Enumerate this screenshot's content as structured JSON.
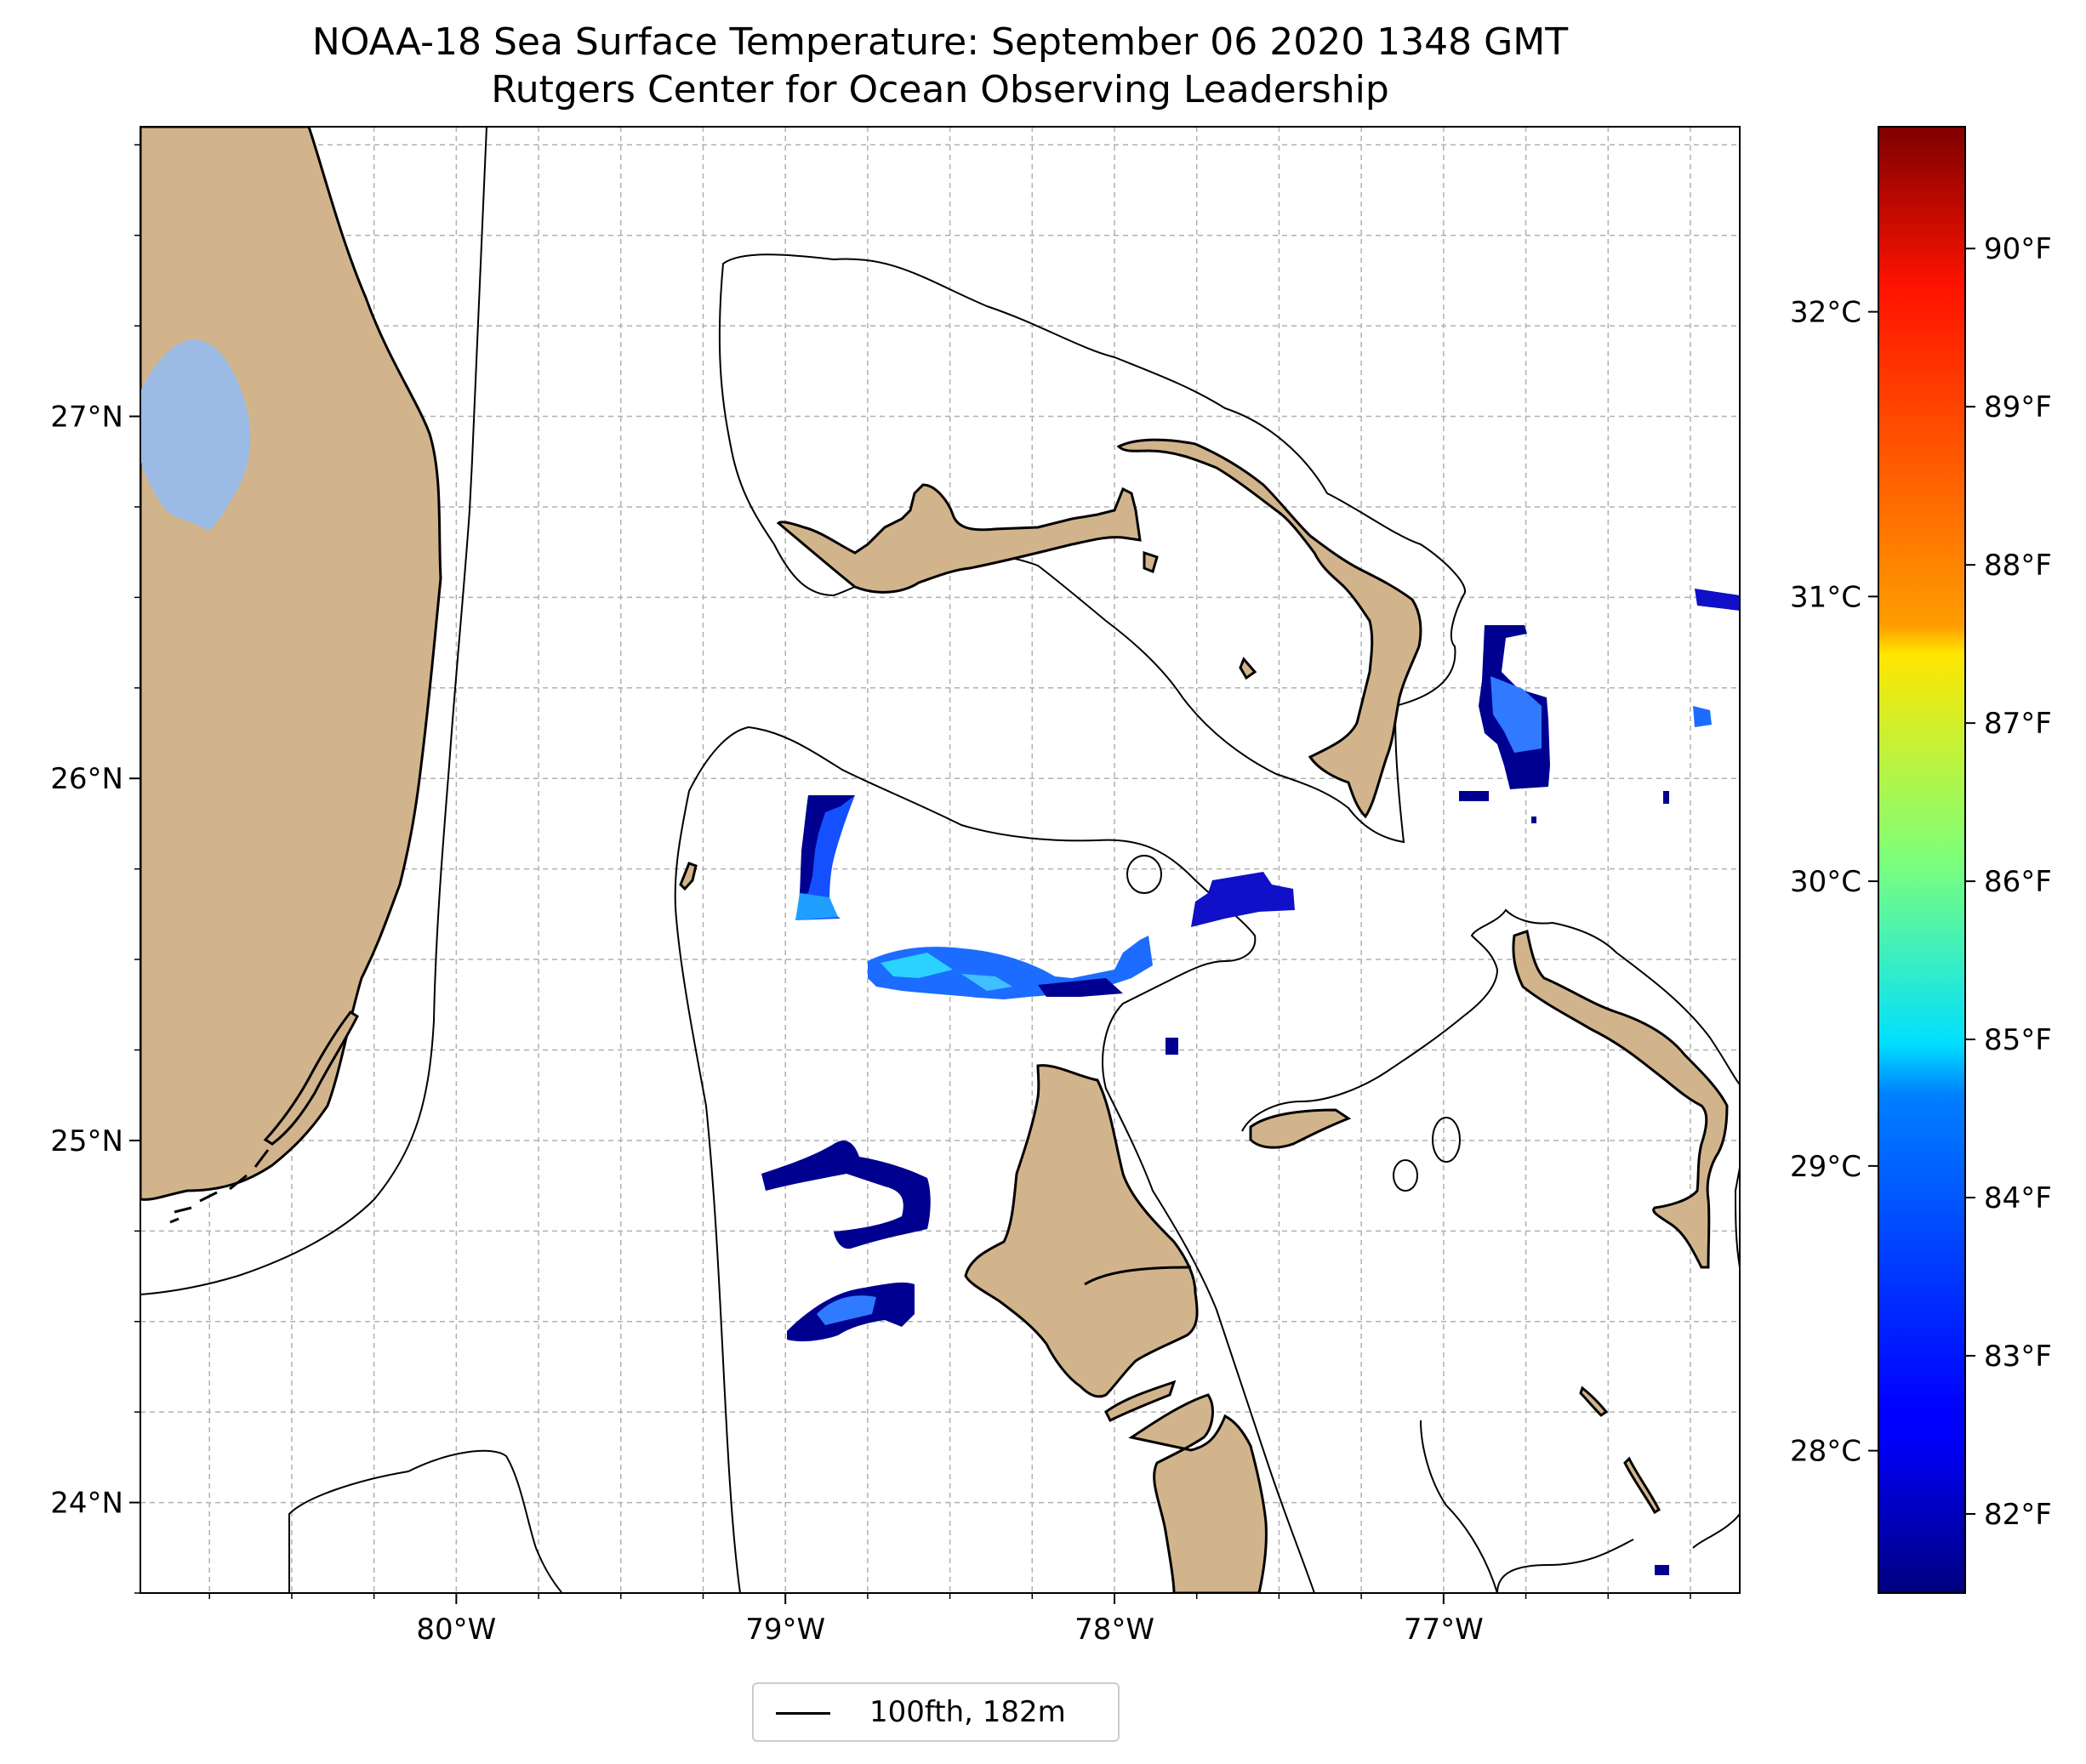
{
  "title": {
    "line1": "NOAA-18 Sea Surface Temperature: September 06 2020 1348 GMT",
    "line2": "Rutgers Center for Ocean Observing Leadership"
  },
  "map": {
    "lon_range": [
      -80.96,
      -76.1
    ],
    "lat_range": [
      23.75,
      27.8
    ],
    "lon_ticks": [
      {
        "value": -80,
        "label": "80°W"
      },
      {
        "value": -79,
        "label": "79°W"
      },
      {
        "value": -78,
        "label": "78°W"
      },
      {
        "value": -77,
        "label": "77°W"
      }
    ],
    "lat_ticks": [
      {
        "value": 24,
        "label": "24°N"
      },
      {
        "value": 25,
        "label": "25°N"
      },
      {
        "value": 26,
        "label": "26°N"
      },
      {
        "value": 27,
        "label": "27°N"
      }
    ],
    "grid": true,
    "land_color": "#d2b48c",
    "lake_color": "#9bbbe4",
    "contour_color": "#000000"
  },
  "colorbar": {
    "colormap": "jet",
    "celsius_ticks": [
      {
        "value": 28,
        "label": "28°C"
      },
      {
        "value": 29,
        "label": "29°C"
      },
      {
        "value": 30,
        "label": "30°C"
      },
      {
        "value": 31,
        "label": "31°C"
      },
      {
        "value": 32,
        "label": "32°C"
      }
    ],
    "fahrenheit_ticks": [
      {
        "value": 82,
        "label": "82°F"
      },
      {
        "value": 83,
        "label": "83°F"
      },
      {
        "value": 84,
        "label": "84°F"
      },
      {
        "value": 85,
        "label": "85°F"
      },
      {
        "value": 86,
        "label": "86°F"
      },
      {
        "value": 87,
        "label": "87°F"
      },
      {
        "value": 88,
        "label": "88°F"
      },
      {
        "value": 89,
        "label": "89°F"
      },
      {
        "value": 90,
        "label": "90°F"
      }
    ]
  },
  "legend": {
    "label": "100fth, 182m"
  }
}
